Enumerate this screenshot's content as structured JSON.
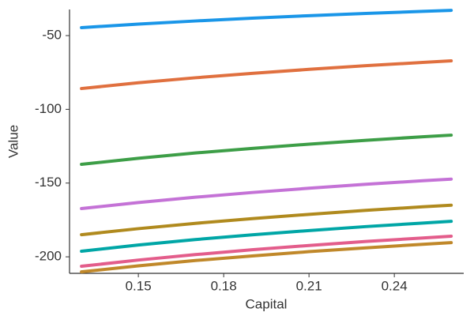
{
  "chart_data": {
    "type": "line",
    "x_label": "Capital",
    "y_label": "Value",
    "x": [
      0.13,
      0.15,
      0.17,
      0.19,
      0.21,
      0.23,
      0.25,
      0.26
    ],
    "series": [
      {
        "color": "#1a96e8",
        "values": [
          -44.6,
          -42.2,
          -40.1,
          -38.2,
          -36.5,
          -35.0,
          -33.6,
          -32.9
        ]
      },
      {
        "color": "#e0703f",
        "values": [
          -85.9,
          -82.0,
          -78.6,
          -75.6,
          -72.9,
          -70.4,
          -68.2,
          -67.1
        ]
      },
      {
        "color": "#3d9e47",
        "values": [
          -137.3,
          -133.2,
          -129.6,
          -126.5,
          -123.6,
          -121.0,
          -118.6,
          -117.5
        ]
      },
      {
        "color": "#c472d6",
        "values": [
          -167.3,
          -163.2,
          -159.6,
          -156.4,
          -153.5,
          -150.8,
          -148.4,
          -147.3
        ]
      },
      {
        "color": "#b08a1e",
        "values": [
          -185.0,
          -180.9,
          -177.3,
          -174.1,
          -171.2,
          -168.5,
          -166.1,
          -165.0
        ]
      },
      {
        "color": "#00a6a6",
        "values": [
          -196.2,
          -192.0,
          -188.3,
          -185.1,
          -182.2,
          -179.5,
          -177.1,
          -175.9
        ]
      },
      {
        "color": "#e35d8b",
        "values": [
          -206.4,
          -202.2,
          -198.5,
          -195.2,
          -192.3,
          -189.6,
          -187.2,
          -186.0
        ]
      },
      {
        "color": "#c0882a",
        "values": [
          -210.2,
          -206.1,
          -202.5,
          -199.4,
          -196.5,
          -193.9,
          -191.5,
          -190.4
        ]
      }
    ],
    "xlim": [
      0.1258,
      0.2644
    ],
    "xticks": [
      0.15,
      0.18,
      0.21,
      0.24
    ],
    "ylim": [
      -211.2,
      -32.3
    ],
    "yticks": [
      -50,
      -100,
      -150,
      -200
    ],
    "grid": false
  }
}
